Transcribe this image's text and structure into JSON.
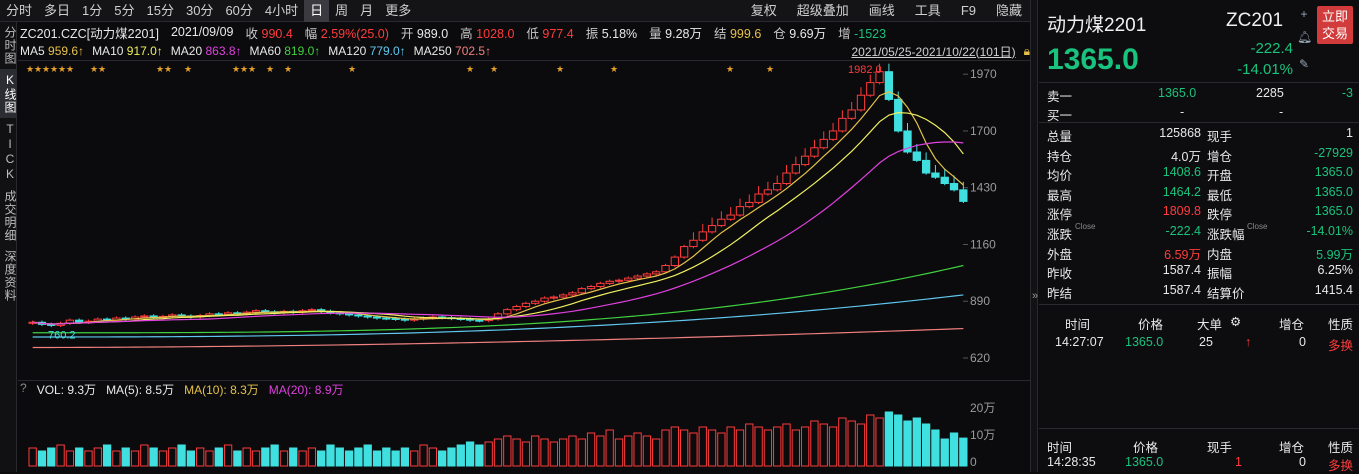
{
  "toolbar": {
    "periods": [
      "分时",
      "多日",
      "1分",
      "5分",
      "15分",
      "30分",
      "60分",
      "4小时",
      "日",
      "周",
      "月",
      "更多"
    ],
    "active_period": "日",
    "right": [
      "复权",
      "超级叠加",
      "画线",
      "工具",
      "F9",
      "隐藏"
    ]
  },
  "vtabs": [
    {
      "label": "分时图",
      "active": false
    },
    {
      "label": "K线图",
      "active": true
    },
    {
      "label": "TICK",
      "active": false
    },
    {
      "label": "成交明细",
      "active": false
    },
    {
      "label": "深度资料",
      "active": false
    }
  ],
  "info": {
    "symbol": "ZC201.CZC[动力煤2201]",
    "date": "2021/09/09",
    "close_label": "收",
    "close": "990.4",
    "amp_label": "幅",
    "amp": "2.59%(25.0)",
    "open_label": "开",
    "open": "989.0",
    "high_label": "高",
    "high": "1028.0",
    "low_label": "低",
    "low": "977.4",
    "swing_label": "振",
    "swing": "5.18%",
    "vol_label": "量",
    "vol": "9.28万",
    "settle_label": "结",
    "settle": "999.6",
    "oi_label": "仓",
    "oi": "9.69万",
    "oichg_label": "增",
    "oichg": "-1523"
  },
  "ma": [
    {
      "label": "MA5",
      "value": "959.6↑",
      "color": "#e5c04a"
    },
    {
      "label": "MA10",
      "value": "917.0↑",
      "color": "#f0f060"
    },
    {
      "label": "MA20",
      "value": "863.8↑",
      "color": "#e040e0"
    },
    {
      "label": "MA60",
      "value": "819.0↑",
      "color": "#40d040"
    },
    {
      "label": "MA120",
      "value": "779.0↑",
      "color": "#60c8f0"
    },
    {
      "label": "MA250",
      "value": "702.5↑",
      "color": "#f08080"
    }
  ],
  "date_range": "2021/05/25-2021/10/22(101日)",
  "max_label": "1982.0",
  "min_label": "760.2",
  "y_ticks": [
    "1970",
    "1700",
    "1430",
    "1160",
    "890",
    "620"
  ],
  "vol_legend": {
    "vol": "VOL: 9.3万",
    "ma5": "MA(5): 8.5万",
    "ma10": "MA(10): 8.3万",
    "ma20": "MA(20): 8.9万"
  },
  "vol_ticks": [
    "20万",
    "10万",
    "0"
  ],
  "chart_data": {
    "type": "candlestick",
    "x": "2021/05/25-2021/10/22 (101 trading days)",
    "ylim": [
      620,
      1990
    ],
    "closes": [
      790,
      780,
      775,
      785,
      800,
      790,
      795,
      805,
      800,
      810,
      805,
      815,
      820,
      812,
      818,
      825,
      820,
      815,
      822,
      830,
      828,
      835,
      830,
      838,
      845,
      840,
      835,
      842,
      838,
      845,
      850,
      842,
      835,
      830,
      825,
      820,
      815,
      810,
      808,
      805,
      800,
      805,
      810,
      815,
      812,
      808,
      805,
      800,
      798,
      805,
      830,
      850,
      865,
      880,
      890,
      905,
      910,
      920,
      930,
      950,
      960,
      975,
      985,
      990,
      1000,
      1010,
      1020,
      1030,
      1060,
      1100,
      1150,
      1180,
      1220,
      1250,
      1280,
      1300,
      1340,
      1360,
      1400,
      1420,
      1450,
      1500,
      1540,
      1580,
      1620,
      1660,
      1700,
      1760,
      1800,
      1870,
      1930,
      1982,
      1850,
      1700,
      1600,
      1560,
      1500,
      1480,
      1450,
      1420,
      1365
    ],
    "vol_wan": [
      6,
      5,
      6,
      7,
      5,
      6,
      5,
      6,
      7,
      5,
      6,
      5,
      7,
      6,
      5,
      6,
      7,
      5,
      6,
      5,
      6,
      7,
      5,
      6,
      5,
      6,
      7,
      5,
      6,
      5,
      6,
      5,
      7,
      6,
      5,
      6,
      7,
      5,
      6,
      5,
      6,
      5,
      7,
      6,
      5,
      6,
      7,
      8,
      7,
      8,
      9,
      10,
      9,
      8,
      10,
      9,
      8,
      9,
      10,
      9,
      11,
      10,
      12,
      9,
      10,
      11,
      10,
      9,
      12,
      13,
      12,
      11,
      13,
      12,
      11,
      13,
      12,
      14,
      13,
      12,
      13,
      14,
      12,
      13,
      15,
      14,
      13,
      16,
      15,
      14,
      17,
      16,
      18,
      17,
      15,
      16,
      14,
      12,
      9,
      11,
      9.3
    ],
    "ma5_last": 959.6,
    "ma10_last": 917.0,
    "ma20_last": 863.8,
    "ma60_last": 819.0,
    "ma120_last": 779.0,
    "ma250_last": 702.5
  },
  "right": {
    "title": "动力煤2201",
    "code": "ZC201",
    "trade": "立即交易",
    "price": "1365.0",
    "change": "-222.4",
    "pct": "-14.01%",
    "ask_label": "卖一",
    "ask_price": "1365.0",
    "ask_vol": "2285",
    "ask_chg": "-3",
    "bid_label": "买一",
    "bid_price": "-",
    "bid_vol": "-",
    "stats": [
      {
        "l1": "总量",
        "v1": "125868",
        "c1": "white",
        "l2": "现手",
        "v2": "1",
        "c2": "white"
      },
      {
        "l1": "持仓",
        "v1": "4.0万",
        "c1": "white",
        "l2": "增仓",
        "v2": "-27929",
        "c2": "green"
      },
      {
        "l1": "均价",
        "v1": "1408.6",
        "c1": "green",
        "l2": "开盘",
        "v2": "1365.0",
        "c2": "green"
      },
      {
        "l1": "最高",
        "v1": "1464.2",
        "c1": "green",
        "l2": "最低",
        "v2": "1365.0",
        "c2": "green"
      },
      {
        "l1": "涨停",
        "v1": "1809.8",
        "c1": "red",
        "l2": "跌停",
        "v2": "1365.0",
        "c2": "green"
      },
      {
        "l1": "涨跌",
        "v1": "-222.4",
        "c1": "green",
        "l2": "涨跌幅",
        "v2": "-14.01%",
        "c2": "green"
      },
      {
        "l1": "外盘",
        "v1": "6.59万",
        "c1": "red",
        "l2": "内盘",
        "v2": "5.99万",
        "c2": "green"
      },
      {
        "l1": "昨收",
        "v1": "1587.4",
        "c1": "white",
        "l2": "振幅",
        "v2": "6.25%",
        "c2": "white"
      },
      {
        "l1": "昨结",
        "v1": "1587.4",
        "c1": "white",
        "l2": "结算价",
        "v2": "1415.4",
        "c2": "white"
      }
    ],
    "stat_sup": "Close",
    "tick_headers": [
      "时间",
      "价格",
      "大单",
      "",
      "增仓",
      "性质"
    ],
    "tick_row": {
      "time": "14:27:07",
      "price": "1365.0",
      "big": "25",
      "arrow": "↑",
      "oi": "0",
      "nature": "多换"
    },
    "tick2_headers": [
      "时间",
      "价格",
      "现手",
      "增仓",
      "性质"
    ],
    "tick2_row": {
      "time": "14:28:35",
      "price": "1365.0",
      "vol": "1",
      "oi": "0",
      "nature": "多换"
    }
  }
}
